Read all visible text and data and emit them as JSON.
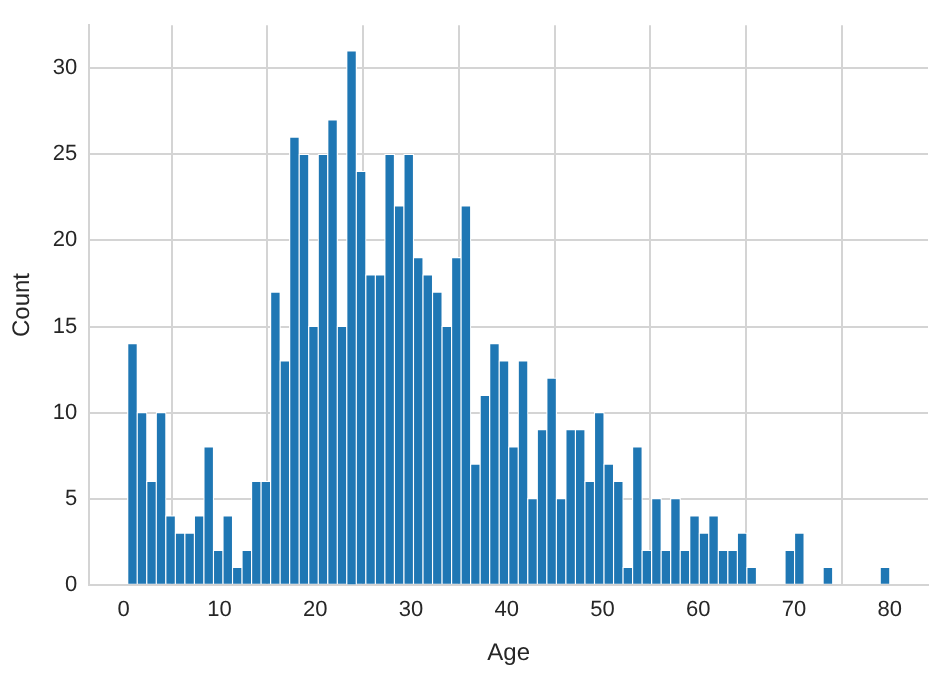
{
  "chart_data": {
    "type": "histogram",
    "xlabel": "Age",
    "ylabel": "Count",
    "color": "#1f77b4",
    "bins": [
      0.42,
      1.41,
      2.41,
      3.4,
      4.4,
      5.39,
      6.39,
      7.38,
      8.38,
      9.37,
      10.37,
      11.36,
      12.36,
      13.35,
      14.35,
      15.34,
      16.34,
      17.33,
      18.33,
      19.32,
      20.32,
      21.31,
      22.31,
      23.3,
      24.29,
      25.29,
      26.28,
      27.28,
      28.27,
      29.27,
      30.26,
      31.26,
      32.25,
      33.25,
      34.24,
      35.24,
      36.23,
      37.23,
      38.22,
      39.22,
      40.21,
      41.21,
      42.2,
      43.2,
      44.19,
      45.19,
      46.18,
      47.18,
      48.17,
      49.17,
      50.16,
      51.16,
      52.15,
      53.15,
      54.14,
      55.14,
      56.13,
      57.13,
      58.12,
      59.12,
      60.11,
      61.11,
      62.1,
      63.1,
      64.09,
      65.09,
      66.08,
      67.08,
      68.07,
      69.07,
      70.06,
      71.06,
      72.05,
      73.05,
      74.04,
      75.04,
      76.03,
      77.03,
      78.02,
      79.02,
      80
    ],
    "values": [
      14,
      10,
      6,
      10,
      4,
      3,
      3,
      4,
      8,
      2,
      4,
      1,
      2,
      6,
      6,
      17,
      13,
      26,
      25,
      15,
      25,
      27,
      15,
      31,
      24,
      18,
      18,
      25,
      22,
      25,
      19,
      18,
      17,
      15,
      19,
      22,
      7,
      11,
      14,
      13,
      8,
      13,
      5,
      9,
      12,
      5,
      9,
      9,
      6,
      10,
      7,
      6,
      1,
      8,
      2,
      5,
      2,
      5,
      2,
      4,
      3,
      4,
      2,
      2,
      3,
      1,
      0,
      0,
      0,
      2,
      3,
      0,
      0,
      1,
      0,
      0,
      0,
      0,
      0,
      1
    ],
    "xlim": [
      -3.6,
      84
    ],
    "ylim": [
      0,
      32.5
    ],
    "xticks": [
      0,
      10,
      20,
      30,
      40,
      50,
      60,
      70,
      80
    ],
    "yticks": [
      0,
      5,
      10,
      15,
      20,
      25,
      30
    ],
    "grid": true
  }
}
